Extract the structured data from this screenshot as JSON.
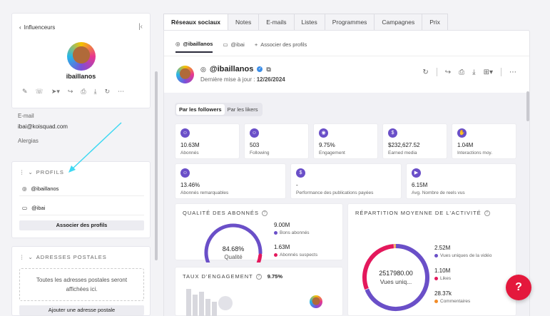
{
  "left": {
    "back_label": "Influenceurs",
    "username": "ibaillanos",
    "email_label": "E-mail",
    "email_value": "ibai@koisquad.com",
    "allergies_label": "Alergias",
    "profiles_section": "PROFILS",
    "profiles": [
      {
        "icon": "instagram-icon",
        "handle": "@ibaillanos"
      },
      {
        "icon": "twitch-icon",
        "handle": "@ibai"
      }
    ],
    "associate_button": "Associer des profils",
    "address_section": "ADRESSES POSTALES",
    "address_empty_line1": "Toutes les adresses postales seront",
    "address_empty_line2": "affichées ici.",
    "add_address_button": "Ajouter une adresse postale"
  },
  "tabs": [
    "Réseaux sociaux",
    "Notes",
    "E-mails",
    "Listes",
    "Programmes",
    "Campagnes",
    "Prix"
  ],
  "subtabs": [
    {
      "icon": "instagram-icon",
      "label": "@ibaillanos"
    },
    {
      "icon": "twitch-icon",
      "label": "@ibai"
    },
    {
      "icon": "plus-icon",
      "label": "Associer des profils"
    }
  ],
  "header": {
    "name": "@ibaillanos",
    "date_label": "Dernière mise à jour :",
    "date_value": "12/26/2024"
  },
  "segment": [
    "Par les followers",
    "Par les likers"
  ],
  "stats_row1": [
    {
      "icon": "users-icon",
      "value": "10.63M",
      "label": "Abonnés"
    },
    {
      "icon": "users-icon",
      "value": "503",
      "label": "Following"
    },
    {
      "icon": "target-icon",
      "value": "9.75%",
      "label": "Engagement"
    },
    {
      "icon": "dollar-icon",
      "value": "$232,627.52",
      "label": "Earned media"
    },
    {
      "icon": "hand-icon",
      "value": "1.04M",
      "label": "Interactions moy."
    }
  ],
  "stats_row2": [
    {
      "icon": "users-icon",
      "value": "13.46%",
      "label": "Abonnés remarquables"
    },
    {
      "icon": "dollar-icon",
      "value": "-",
      "label": "Performance des publications payées"
    },
    {
      "icon": "play-icon",
      "value": "6.15M",
      "label": "Avg. Nombre de reels vus"
    }
  ],
  "quality": {
    "title": "QUALITÉ DES ABONNÉS",
    "percent": "84.68%",
    "center_label": "Qualité",
    "good_value": "9.00M",
    "good_label": "Bons abonnés",
    "bad_value": "1.63M",
    "bad_label": "Abonnés suspects",
    "good_color": "#6a4fc8",
    "bad_color": "#e4185c"
  },
  "engagement": {
    "title": "TAUX D'ENGAGEMENT",
    "value": "9.75%"
  },
  "activity": {
    "title": "RÉPARTITION MOYENNE DE L'ACTIVITÉ",
    "center_value": "2517980.00",
    "center_label": "Vues uniq...",
    "items": [
      {
        "value": "2.52M",
        "label": "Vues uniques de la vidéo",
        "color": "#6a4fc8"
      },
      {
        "value": "1.10M",
        "label": "Likes",
        "color": "#e4185c"
      },
      {
        "value": "28.37k",
        "label": "Commentaires",
        "color": "#f28c28"
      }
    ]
  },
  "help_label": "?"
}
